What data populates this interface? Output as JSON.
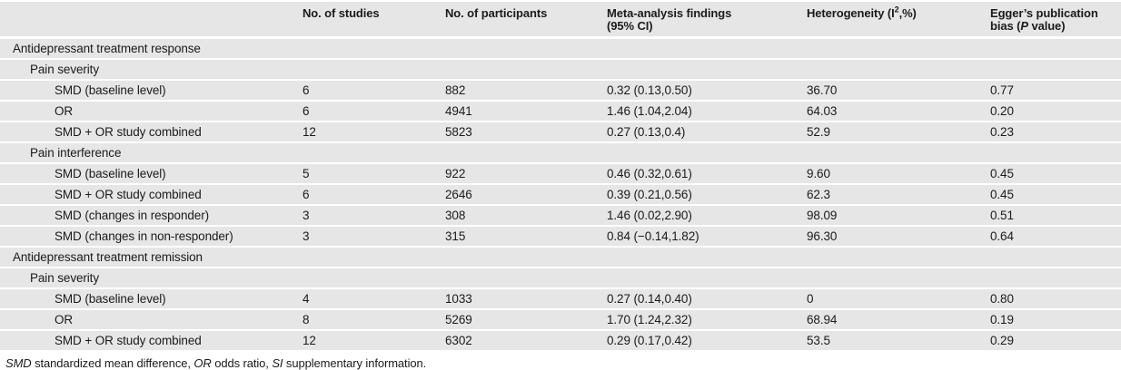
{
  "colors": {
    "row_bg": "#e6e6e6",
    "text": "#1b1b1b"
  },
  "table": {
    "column_ids": [
      "label",
      "studies",
      "participants",
      "findings",
      "heterogeneity",
      "eggers"
    ],
    "header": {
      "rowlabel": "",
      "studies": "No. of studies",
      "participants": "No. of participants",
      "findings_line1": "Meta-analysis findings",
      "findings_line2": "(95% CI)",
      "heterogeneity_pre": "Heterogeneity (I",
      "heterogeneity_sup": "2",
      "heterogeneity_post": ",%)",
      "eggers_line1": "Egger’s publication",
      "eggers_line2_pre": "bias (",
      "eggers_line2_italic": "P",
      "eggers_line2_post": " value)"
    },
    "rows": [
      {
        "indent": 1,
        "cells": [
          "Antidepressant treatment response",
          "",
          "",
          "",
          "",
          ""
        ]
      },
      {
        "indent": 2,
        "cells": [
          "Pain severity",
          "",
          "",
          "",
          "",
          ""
        ]
      },
      {
        "indent": 3,
        "cells": [
          "SMD (baseline level)",
          "6",
          "882",
          "0.32 (0.13,0.50)",
          "36.70",
          "0.77"
        ]
      },
      {
        "indent": 3,
        "cells": [
          "OR",
          "6",
          "4941",
          "1.46 (1.04,2.04)",
          "64.03",
          "0.20"
        ]
      },
      {
        "indent": 3,
        "cells": [
          "SMD + OR study combined",
          "12",
          "5823",
          "0.27 (0.13,0.4)",
          "52.9",
          "0.23"
        ]
      },
      {
        "indent": 2,
        "cells": [
          "Pain interference",
          "",
          "",
          "",
          "",
          ""
        ]
      },
      {
        "indent": 3,
        "cells": [
          "SMD (baseline level)",
          "5",
          "922",
          "0.46 (0.32,0.61)",
          "9.60",
          "0.45"
        ]
      },
      {
        "indent": 3,
        "cells": [
          "SMD + OR study combined",
          "6",
          "2646",
          "0.39 (0.21,0.56)",
          "62.3",
          "0.45"
        ]
      },
      {
        "indent": 3,
        "cells": [
          "SMD (changes in responder)",
          "3",
          "308",
          "1.46 (0.02,2.90)",
          "98.09",
          "0.51"
        ]
      },
      {
        "indent": 3,
        "cells": [
          "SMD (changes in non-responder)",
          "3",
          "315",
          "0.84 (−0.14,1.82)",
          "96.30",
          "0.64"
        ]
      },
      {
        "indent": 1,
        "cells": [
          "Antidepressant treatment remission",
          "",
          "",
          "",
          "",
          ""
        ]
      },
      {
        "indent": 2,
        "cells": [
          "Pain severity",
          "",
          "",
          "",
          "",
          ""
        ]
      },
      {
        "indent": 3,
        "cells": [
          "SMD (baseline level)",
          "4",
          "1033",
          "0.27 (0.14,0.40)",
          "0",
          "0.80"
        ]
      },
      {
        "indent": 3,
        "cells": [
          "OR",
          "8",
          "5269",
          "1.70 (1.24,2.32)",
          "68.94",
          "0.19"
        ]
      },
      {
        "indent": 3,
        "cells": [
          "SMD + OR study combined",
          "12",
          "6302",
          "0.29 (0.17,0.42)",
          "53.5",
          "0.29"
        ]
      }
    ]
  },
  "footnote": {
    "parts": [
      {
        "text": "SMD",
        "italic": true
      },
      {
        "text": " standardized mean difference, ",
        "italic": false
      },
      {
        "text": "OR",
        "italic": true
      },
      {
        "text": " odds ratio, ",
        "italic": false
      },
      {
        "text": "SI",
        "italic": true
      },
      {
        "text": " supplementary information.",
        "italic": false
      }
    ]
  }
}
